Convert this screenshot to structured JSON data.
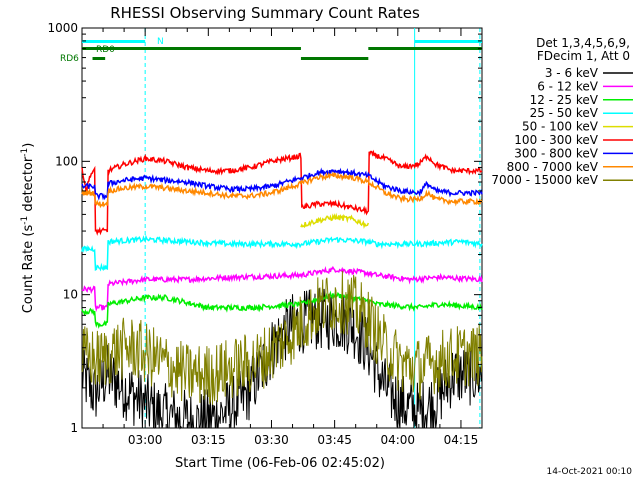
{
  "chart_data": {
    "type": "line",
    "title": "RHESSI Observing Summary Count Rates",
    "xlabel": "Start Time (06-Feb-06 02:45:02)",
    "ylabel_main": "Count Rate (s",
    "ylabel_sup1": "-1",
    "ylabel_mid": " detector",
    "ylabel_sup2": "-1",
    "ylabel_close": ")",
    "x_start_min": 0,
    "x_end_min": 95,
    "ylim": [
      1,
      1000
    ],
    "y_scale": "log",
    "y_ticks": [
      {
        "value": 1,
        "label": "1"
      },
      {
        "value": 10,
        "label": "10"
      },
      {
        "value": 100,
        "label": "100"
      },
      {
        "value": 1000,
        "label": "1000"
      }
    ],
    "x_ticks": [
      {
        "t": 15,
        "label": "03:00"
      },
      {
        "t": 30,
        "label": "03:15"
      },
      {
        "t": 45,
        "label": "03:30"
      },
      {
        "t": 60,
        "label": "03:45"
      },
      {
        "t": 75,
        "label": "04:00"
      },
      {
        "t": 90,
        "label": "04:15"
      }
    ],
    "legend_header": [
      "Det 1,3,4,5,6,9,",
      "FDecim 1, Att 0"
    ],
    "series": [
      {
        "name": "3 - 6 keV",
        "color": "#000000",
        "noisy": true,
        "points": [
          [
            0,
            2.5
          ],
          [
            3,
            1.8
          ],
          [
            6,
            2.5
          ],
          [
            10,
            2.0
          ],
          [
            14,
            1.6
          ],
          [
            18,
            1.3
          ],
          [
            22,
            1.2
          ],
          [
            27,
            1.1
          ],
          [
            32,
            1.2
          ],
          [
            38,
            1.6
          ],
          [
            42,
            2.5
          ],
          [
            46,
            4.5
          ],
          [
            50,
            6.0
          ],
          [
            55,
            6.5
          ],
          [
            60,
            6.5
          ],
          [
            64,
            6.0
          ],
          [
            68,
            4.0
          ],
          [
            72,
            2.0
          ],
          [
            76,
            1.5
          ],
          [
            80,
            1.3
          ],
          [
            84,
            1.6
          ],
          [
            88,
            2.5
          ],
          [
            95,
            2.5
          ]
        ]
      },
      {
        "name": "6 - 12 keV",
        "color": "#ff00ff",
        "points": [
          [
            0,
            11
          ],
          [
            3,
            11
          ],
          [
            3.2,
            8
          ],
          [
            6,
            8
          ],
          [
            6.2,
            12
          ],
          [
            15,
            13
          ],
          [
            25,
            13
          ],
          [
            35,
            13.5
          ],
          [
            52,
            14
          ],
          [
            60,
            15.5
          ],
          [
            68,
            14.5
          ],
          [
            70,
            14
          ],
          [
            78,
            13
          ],
          [
            85,
            13.5
          ],
          [
            95,
            13
          ]
        ]
      },
      {
        "name": "12 - 25 keV",
        "color": "#00ee00",
        "points": [
          [
            0,
            7.5
          ],
          [
            3,
            7.5
          ],
          [
            3.2,
            6
          ],
          [
            6,
            6
          ],
          [
            6.2,
            8.5
          ],
          [
            15,
            9.5
          ],
          [
            20,
            9.5
          ],
          [
            30,
            8
          ],
          [
            40,
            8
          ],
          [
            52,
            8.5
          ],
          [
            60,
            10
          ],
          [
            68,
            9
          ],
          [
            70,
            8.5
          ],
          [
            80,
            8
          ],
          [
            85,
            8.5
          ],
          [
            95,
            8
          ]
        ]
      },
      {
        "name": "25 - 50 keV",
        "color": "#00ffff",
        "points": [
          [
            0,
            22
          ],
          [
            3,
            22
          ],
          [
            3.2,
            16
          ],
          [
            6,
            16
          ],
          [
            6.2,
            25
          ],
          [
            15,
            26
          ],
          [
            25,
            25
          ],
          [
            35,
            24
          ],
          [
            52,
            24
          ],
          [
            60,
            26
          ],
          [
            68,
            25
          ],
          [
            70,
            24
          ],
          [
            80,
            24
          ],
          [
            90,
            25
          ],
          [
            95,
            24
          ]
        ]
      },
      {
        "name": "50 - 100 keV",
        "color": "#dddd00",
        "points": [
          [
            52,
            33
          ],
          [
            56,
            36
          ],
          [
            60,
            38
          ],
          [
            64,
            37
          ],
          [
            68,
            33
          ]
        ]
      },
      {
        "name": "100 - 300 keV",
        "color": "#ff0000",
        "points": [
          [
            0,
            90
          ],
          [
            1,
            60
          ],
          [
            2,
            80
          ],
          [
            3,
            85
          ],
          [
            3.2,
            30
          ],
          [
            6,
            30
          ],
          [
            6.2,
            85
          ],
          [
            10,
            95
          ],
          [
            15,
            105
          ],
          [
            20,
            100
          ],
          [
            25,
            90
          ],
          [
            30,
            85
          ],
          [
            35,
            85
          ],
          [
            40,
            90
          ],
          [
            45,
            100
          ],
          [
            52,
            110
          ],
          [
            52.2,
            45
          ],
          [
            56,
            48
          ],
          [
            60,
            48
          ],
          [
            64,
            45
          ],
          [
            68,
            42
          ],
          [
            68.2,
            115
          ],
          [
            72,
            105
          ],
          [
            76,
            90
          ],
          [
            80,
            95
          ],
          [
            82,
            110
          ],
          [
            84,
            95
          ],
          [
            88,
            85
          ],
          [
            95,
            85
          ]
        ]
      },
      {
        "name": "300 - 800 keV",
        "color": "#0000ff",
        "points": [
          [
            0,
            65
          ],
          [
            3,
            65
          ],
          [
            3.2,
            55
          ],
          [
            6,
            55
          ],
          [
            6.2,
            68
          ],
          [
            10,
            72
          ],
          [
            15,
            75
          ],
          [
            20,
            72
          ],
          [
            25,
            70
          ],
          [
            30,
            65
          ],
          [
            35,
            62
          ],
          [
            40,
            62
          ],
          [
            45,
            65
          ],
          [
            52,
            75
          ],
          [
            56,
            82
          ],
          [
            60,
            85
          ],
          [
            64,
            82
          ],
          [
            68,
            78
          ],
          [
            72,
            65
          ],
          [
            76,
            60
          ],
          [
            80,
            58
          ],
          [
            82,
            68
          ],
          [
            84,
            60
          ],
          [
            88,
            58
          ],
          [
            95,
            58
          ]
        ]
      },
      {
        "name": "800 - 7000 keV",
        "color": "#ff8800",
        "points": [
          [
            0,
            58
          ],
          [
            3,
            58
          ],
          [
            3.2,
            48
          ],
          [
            6,
            48
          ],
          [
            6.2,
            60
          ],
          [
            10,
            63
          ],
          [
            15,
            65
          ],
          [
            20,
            63
          ],
          [
            25,
            60
          ],
          [
            30,
            58
          ],
          [
            35,
            55
          ],
          [
            40,
            55
          ],
          [
            45,
            58
          ],
          [
            52,
            68
          ],
          [
            56,
            76
          ],
          [
            60,
            78
          ],
          [
            64,
            76
          ],
          [
            68,
            70
          ],
          [
            72,
            58
          ],
          [
            76,
            52
          ],
          [
            80,
            52
          ],
          [
            82,
            58
          ],
          [
            84,
            52
          ],
          [
            88,
            50
          ],
          [
            95,
            50
          ]
        ]
      },
      {
        "name": "7000 - 15000 keV",
        "color": "#808000",
        "noisy": true,
        "points": [
          [
            0,
            3.5
          ],
          [
            4,
            3.2
          ],
          [
            8,
            3.8
          ],
          [
            12,
            4.0
          ],
          [
            16,
            3.5
          ],
          [
            20,
            3.0
          ],
          [
            25,
            2.5
          ],
          [
            30,
            2.5
          ],
          [
            36,
            2.8
          ],
          [
            42,
            3.2
          ],
          [
            48,
            4.5
          ],
          [
            52,
            6.0
          ],
          [
            56,
            8.0
          ],
          [
            60,
            9.0
          ],
          [
            64,
            8.5
          ],
          [
            68,
            6.5
          ],
          [
            72,
            4.0
          ],
          [
            76,
            3.0
          ],
          [
            80,
            2.8
          ],
          [
            85,
            3.2
          ],
          [
            90,
            3.5
          ],
          [
            95,
            3.5
          ]
        ]
      }
    ],
    "status_bars": {
      "n_label": "N",
      "rd0_label": "RD0",
      "rd6_label": "RD6",
      "n_color": "#00ffff",
      "rd_color": "#007700",
      "n_segments": [
        [
          0,
          15
        ],
        [
          79,
          95
        ]
      ],
      "rd0_segments": [
        [
          0,
          52
        ],
        [
          52,
          68
        ],
        [
          68,
          95
        ]
      ],
      "rd6_segments": [
        [
          2.5,
          5.5
        ]
      ]
    },
    "vlines": [
      15,
      79,
      94.5
    ],
    "vline_color": "#00ffff",
    "solid_vlines": [
      79
    ],
    "footer_date": "14-Oct-2021 00:10"
  }
}
